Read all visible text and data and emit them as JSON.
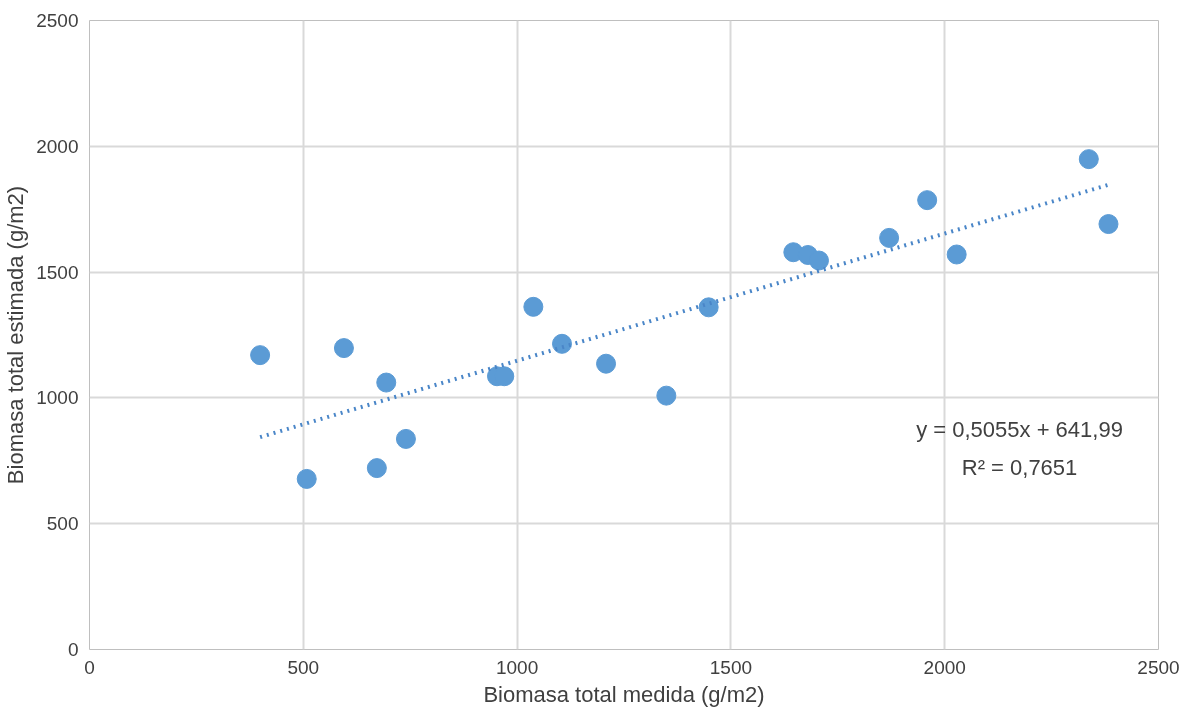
{
  "chart_data": {
    "type": "scatter",
    "xlabel": "Biomasa total medida (g/m2)",
    "ylabel": "Biomasa total estimada (g/m2)",
    "xlim": [
      0,
      2500
    ],
    "ylim": [
      0,
      2500
    ],
    "xticks": [
      0,
      500,
      1000,
      1500,
      2000,
      2500
    ],
    "yticks": [
      0,
      500,
      1000,
      1500,
      2000,
      2500
    ],
    "grid": true,
    "series": [
      {
        "marker": "circle",
        "color": "#5b9bd5",
        "x": [
          399,
          595,
          694,
          508,
          672,
          740,
          953,
          970,
          1038,
          1105,
          1208,
          1349,
          1448,
          1646,
          1680,
          1706,
          1870,
          1959,
          2028,
          2337,
          2383
        ],
        "values": [
          1170,
          1198,
          1061,
          678,
          721,
          837,
          1086,
          1086,
          1362,
          1215,
          1136,
          1009,
          1360,
          1579,
          1568,
          1546,
          1636,
          1786,
          1570,
          1949,
          1691
        ]
      },
      {
        "type": "line",
        "line_style": "dotted",
        "marker": "none",
        "color": "#4a86c8",
        "x": [
          399,
          2383
        ],
        "values": [
          844,
          1847
        ]
      }
    ],
    "annotations": [
      "y = 0,5055x + 641,99",
      "R² = 0,7651"
    ]
  }
}
